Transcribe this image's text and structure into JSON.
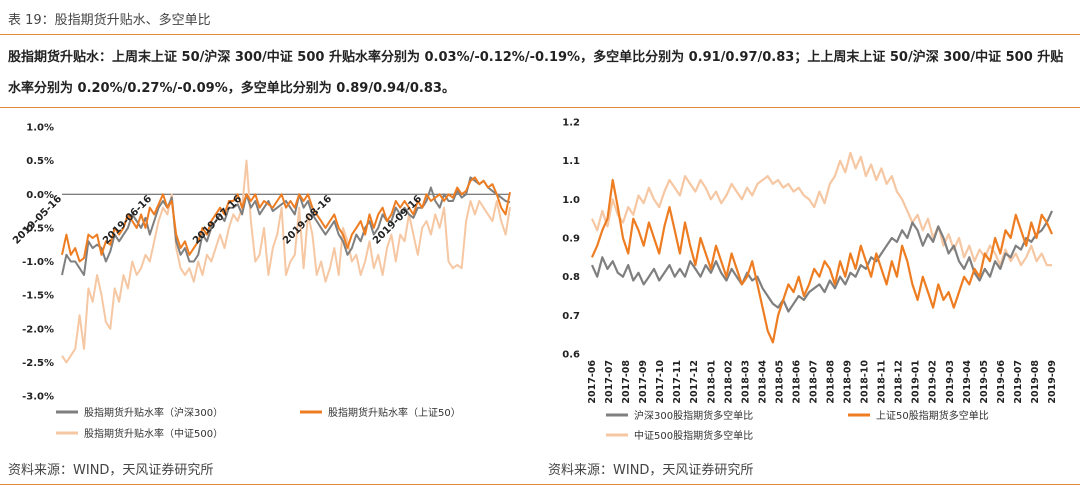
{
  "header": {
    "table_title": "表 19：股指期货升贴水、多空单比",
    "summary": "股指期货升贴水：上周末上证 50/沪深 300/中证 500 升贴水率分别为 0.03%/-0.12%/-0.19%，多空单比分别为 0.91/0.97/0.83；上上周末上证 50/沪深 300/中证 500 升贴水率分别为 0.20%/0.27%/-0.09%，多空单比分别为 0.89/0.94/0.83。"
  },
  "footer": {
    "source_left": "资料来源：WIND，天风证券研究所",
    "source_right": "资料来源：WIND，天风证券研究所"
  },
  "colors": {
    "gray": "#7f7f7f",
    "orange": "#ee7d22",
    "peach": "#f6c7a3",
    "rule": "#e38b3a"
  },
  "chart_data": [
    {
      "type": "line",
      "ylim": [
        -3.0,
        1.0
      ],
      "yticks": [
        "1.0%",
        "0.5%",
        "0.0%",
        "-0.5%",
        "-1.0%",
        "-1.5%",
        "-2.0%",
        "-2.5%",
        "-3.0%"
      ],
      "xticks": [
        "2019-05-16",
        "2019-06-16",
        "2019-07-16",
        "2019-08-16",
        "2019-09-16"
      ],
      "legend_position": "bottom",
      "series": [
        {
          "name": "股指期货升贴水率（沪深300）",
          "color": "#7f7f7f",
          "values": [
            -1.2,
            -0.9,
            -1.0,
            -1.0,
            -1.1,
            -1.2,
            -0.7,
            -0.8,
            -0.75,
            -0.8,
            -1.0,
            -0.85,
            -0.6,
            -0.7,
            -0.6,
            -0.5,
            -0.3,
            -0.4,
            -0.5,
            -0.35,
            -0.6,
            -0.4,
            -0.2,
            -0.1,
            -0.2,
            -0.05,
            -0.7,
            -0.9,
            -0.8,
            -1.0,
            -1.0,
            -0.9,
            -0.6,
            -0.7,
            -0.5,
            -0.4,
            -0.3,
            -0.4,
            -0.2,
            -0.2,
            -0.15,
            -0.3,
            0.0,
            -0.2,
            -0.1,
            -0.3,
            -0.2,
            -0.1,
            -0.25,
            -0.2,
            -0.15,
            -0.1,
            -0.2,
            -0.3,
            0.0,
            -0.2,
            -0.1,
            -0.3,
            -0.4,
            -0.5,
            -0.6,
            -0.5,
            -0.4,
            -0.6,
            -0.7,
            -0.9,
            -0.8,
            -0.6,
            -0.7,
            -0.5,
            -0.4,
            -0.6,
            -0.5,
            -0.3,
            -0.4,
            -0.4,
            -0.2,
            -0.3,
            -0.2,
            -0.3,
            -0.35,
            -0.2,
            -0.2,
            -0.1,
            0.1,
            -0.1,
            -0.2,
            0.0,
            -0.1,
            -0.1,
            0.05,
            -0.05,
            0.0,
            0.25,
            0.2,
            0.15,
            0.2,
            0.1,
            0.05,
            0.0,
            -0.05,
            -0.1,
            -0.12
          ]
        },
        {
          "name": "股指期货升贴水率（上证50）",
          "color": "#ee7d22",
          "values": [
            -0.9,
            -0.6,
            -0.9,
            -0.8,
            -1.0,
            -0.95,
            -0.6,
            -0.65,
            -0.6,
            -0.9,
            -0.7,
            -0.75,
            -0.5,
            -0.6,
            -0.5,
            -0.3,
            -0.4,
            -0.5,
            -0.3,
            -0.5,
            -0.2,
            -0.3,
            -0.15,
            0.0,
            -0.2,
            -0.1,
            -0.6,
            -0.8,
            -0.7,
            -0.9,
            -0.8,
            -0.7,
            -0.5,
            -0.6,
            -0.4,
            -0.3,
            -0.2,
            -0.3,
            -0.1,
            -0.1,
            0.0,
            -0.2,
            0.0,
            -0.1,
            0.0,
            -0.2,
            -0.1,
            -0.15,
            -0.2,
            -0.1,
            0.0,
            -0.2,
            -0.1,
            -0.2,
            0.0,
            -0.1,
            0.0,
            -0.2,
            -0.3,
            -0.4,
            -0.5,
            -0.4,
            -0.3,
            -0.5,
            -0.6,
            -0.8,
            -0.6,
            -0.5,
            -0.4,
            -0.6,
            -0.3,
            -0.5,
            -0.3,
            -0.2,
            -0.4,
            -0.3,
            -0.1,
            -0.2,
            -0.1,
            -0.2,
            -0.3,
            -0.1,
            -0.2,
            0.0,
            -0.1,
            -0.05,
            0.0,
            -0.1,
            0.0,
            -0.05,
            0.1,
            0.0,
            0.05,
            0.2,
            0.25,
            0.15,
            0.2,
            0.1,
            0.15,
            0.0,
            -0.2,
            -0.3,
            0.03
          ]
        },
        {
          "name": "股指期货升贴水率（中证500）",
          "color": "#f6c7a3",
          "values": [
            -2.4,
            -2.5,
            -2.4,
            -2.3,
            -1.8,
            -2.3,
            -1.4,
            -1.6,
            -1.2,
            -1.5,
            -1.9,
            -2.0,
            -1.4,
            -1.6,
            -1.2,
            -1.4,
            -1.0,
            -1.2,
            -1.1,
            -0.9,
            -1.0,
            -0.7,
            -0.4,
            -0.2,
            -0.3,
            0.0,
            -0.8,
            -1.1,
            -1.2,
            -1.1,
            -1.3,
            -1.0,
            -1.2,
            -0.9,
            -1.0,
            -0.8,
            -0.6,
            -0.8,
            -0.5,
            -0.3,
            -0.4,
            -0.2,
            0.5,
            -0.4,
            -1.0,
            -0.9,
            -0.5,
            -1.2,
            -0.8,
            -0.6,
            -0.2,
            -1.2,
            -1.0,
            -0.9,
            -0.2,
            -1.1,
            -0.3,
            -0.6,
            -1.2,
            -1.0,
            -1.3,
            -1.1,
            -0.8,
            -1.2,
            -0.5,
            -0.7,
            -1.0,
            -0.9,
            -1.2,
            -1.0,
            -0.7,
            -1.1,
            -0.9,
            -1.2,
            -0.8,
            -0.6,
            -1.0,
            -0.6,
            -0.7,
            -0.3,
            -0.6,
            -0.9,
            -0.5,
            -0.4,
            -0.6,
            -0.3,
            -0.5,
            -0.2,
            -1.0,
            -1.1,
            -1.05,
            -1.1,
            -0.4,
            -0.1,
            -0.3,
            -0.1,
            -0.2,
            -0.3,
            -0.4,
            -0.1,
            -0.4,
            -0.6,
            -0.19
          ]
        }
      ]
    },
    {
      "type": "line",
      "ylim": [
        0.6,
        1.2
      ],
      "yticks": [
        "1.2",
        "1.1",
        "1.0",
        "0.9",
        "0.8",
        "0.7",
        "0.6"
      ],
      "xticks": [
        "2017-06",
        "2017-07",
        "2017-08",
        "2017-09",
        "2017-10",
        "2017-11",
        "2017-12",
        "2018-01",
        "2018-02",
        "2018-03",
        "2018-04",
        "2018-05",
        "2018-06",
        "2018-07",
        "2018-08",
        "2018-09",
        "2018-10",
        "2018-11",
        "2018-12",
        "2019-01",
        "2019-02",
        "2019-03",
        "2019-04",
        "2019-05",
        "2019-06",
        "2019-07",
        "2019-08",
        "2019-09"
      ],
      "legend_position": "bottom",
      "series": [
        {
          "name": "沪深300股指期货多空单比",
          "color": "#7f7f7f",
          "values": [
            0.83,
            0.8,
            0.85,
            0.82,
            0.84,
            0.81,
            0.8,
            0.83,
            0.79,
            0.81,
            0.78,
            0.8,
            0.82,
            0.79,
            0.81,
            0.83,
            0.8,
            0.82,
            0.8,
            0.84,
            0.82,
            0.8,
            0.83,
            0.81,
            0.84,
            0.81,
            0.79,
            0.82,
            0.8,
            0.78,
            0.81,
            0.79,
            0.8,
            0.77,
            0.75,
            0.73,
            0.72,
            0.74,
            0.71,
            0.73,
            0.75,
            0.74,
            0.76,
            0.77,
            0.78,
            0.76,
            0.79,
            0.77,
            0.8,
            0.78,
            0.81,
            0.8,
            0.83,
            0.82,
            0.85,
            0.84,
            0.86,
            0.88,
            0.9,
            0.89,
            0.92,
            0.9,
            0.94,
            0.92,
            0.88,
            0.91,
            0.89,
            0.93,
            0.9,
            0.86,
            0.88,
            0.84,
            0.82,
            0.85,
            0.81,
            0.79,
            0.82,
            0.8,
            0.84,
            0.82,
            0.86,
            0.85,
            0.88,
            0.87,
            0.9,
            0.89,
            0.91,
            0.92,
            0.94,
            0.97
          ]
        },
        {
          "name": "上证50股指期货多空单比",
          "color": "#ee7d22",
          "values": [
            0.85,
            0.88,
            0.92,
            0.95,
            1.05,
            0.98,
            0.9,
            0.86,
            0.95,
            0.92,
            0.88,
            0.94,
            0.9,
            0.86,
            0.93,
            0.98,
            0.92,
            0.86,
            0.94,
            0.88,
            0.83,
            0.9,
            0.86,
            0.82,
            0.88,
            0.84,
            0.8,
            0.86,
            0.82,
            0.78,
            0.8,
            0.84,
            0.78,
            0.72,
            0.66,
            0.63,
            0.7,
            0.74,
            0.78,
            0.76,
            0.8,
            0.75,
            0.78,
            0.82,
            0.8,
            0.84,
            0.82,
            0.78,
            0.84,
            0.8,
            0.86,
            0.82,
            0.88,
            0.84,
            0.8,
            0.86,
            0.82,
            0.78,
            0.84,
            0.8,
            0.88,
            0.84,
            0.78,
            0.74,
            0.8,
            0.76,
            0.72,
            0.78,
            0.74,
            0.76,
            0.72,
            0.76,
            0.8,
            0.78,
            0.82,
            0.8,
            0.86,
            0.84,
            0.9,
            0.86,
            0.92,
            0.9,
            0.96,
            0.92,
            0.88,
            0.94,
            0.9,
            0.96,
            0.94,
            0.91
          ]
        },
        {
          "name": "中证500股指期货多空单比",
          "color": "#f6c7a3",
          "values": [
            0.95,
            0.92,
            0.97,
            0.93,
            1.0,
            0.96,
            0.94,
            0.98,
            0.96,
            1.01,
            0.99,
            1.03,
            1.0,
            0.98,
            1.02,
            1.05,
            1.03,
            1.01,
            1.06,
            1.04,
            1.02,
            1.05,
            1.03,
            1.0,
            1.02,
            0.99,
            1.01,
            1.04,
            1.02,
            1.0,
            1.03,
            1.01,
            1.04,
            1.05,
            1.06,
            1.04,
            1.05,
            1.03,
            1.04,
            1.02,
            1.03,
            1.01,
            1.0,
            0.98,
            1.02,
            0.99,
            1.04,
            1.06,
            1.1,
            1.07,
            1.12,
            1.08,
            1.11,
            1.06,
            1.09,
            1.05,
            1.08,
            1.04,
            1.06,
            1.02,
            1.0,
            0.97,
            0.94,
            0.96,
            0.92,
            0.95,
            0.9,
            0.93,
            0.88,
            0.91,
            0.87,
            0.9,
            0.85,
            0.88,
            0.84,
            0.87,
            0.85,
            0.88,
            0.86,
            0.83,
            0.87,
            0.84,
            0.86,
            0.83,
            0.85,
            0.88,
            0.84,
            0.86,
            0.83,
            0.83
          ]
        }
      ]
    }
  ]
}
